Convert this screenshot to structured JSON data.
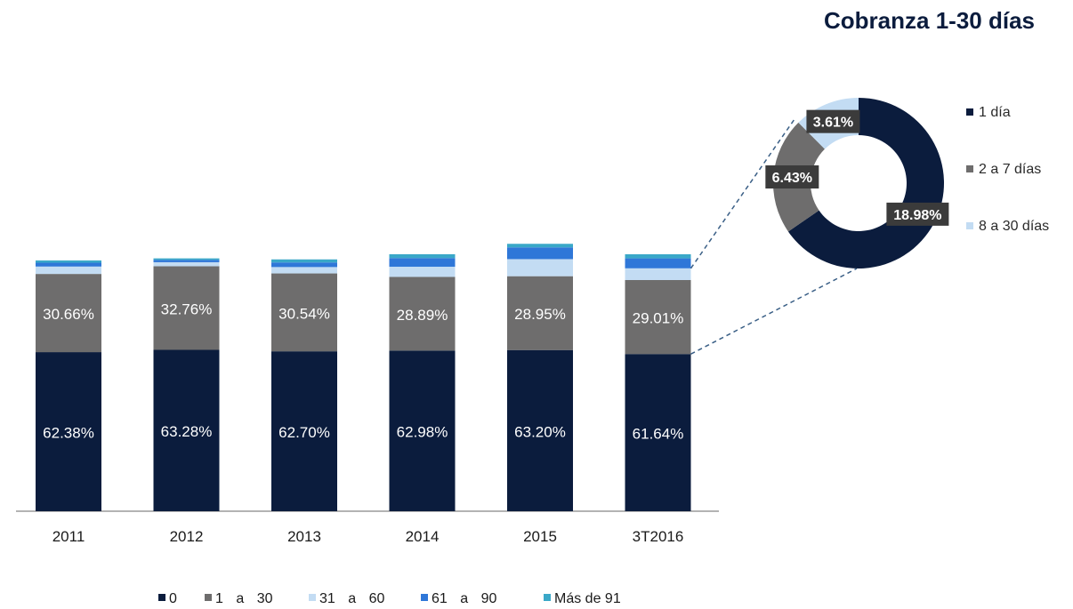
{
  "chart_data": [
    {
      "type": "bar",
      "stacked": true,
      "categories": [
        "2011",
        "2012",
        "2013",
        "2014",
        "2015",
        "3T2016"
      ],
      "series": [
        {
          "name": "0",
          "color": "#0b1c3d",
          "values": [
            62.38,
            63.28,
            62.7,
            62.98,
            63.2,
            61.64
          ],
          "labels": [
            "62.38%",
            "63.28%",
            "62.70%",
            "62.98%",
            "63.20%",
            "61.64%"
          ]
        },
        {
          "name": "1 a 30",
          "color": "#6e6d6d",
          "values": [
            30.66,
            32.76,
            30.54,
            28.89,
            28.95,
            29.01
          ],
          "labels": [
            "30.66%",
            "32.76%",
            "30.54%",
            "28.89%",
            "28.95%",
            "29.01%"
          ]
        },
        {
          "name": "31 a 60",
          "color": "#c3dcf3",
          "values": [
            2.9,
            1.6,
            2.5,
            4.0,
            6.7,
            4.6
          ],
          "labels": [
            "",
            "",
            "",
            "",
            "",
            ""
          ]
        },
        {
          "name": "61 a 90",
          "color": "#2f77d8",
          "values": [
            1.5,
            0.9,
            1.8,
            3.4,
            4.6,
            3.9
          ],
          "labels": [
            "",
            "",
            "",
            "",
            "",
            ""
          ]
        },
        {
          "name": "Más de 91",
          "color": "#3aa8c8",
          "values": [
            0.9,
            0.6,
            1.2,
            1.5,
            1.4,
            1.6
          ],
          "labels": [
            "",
            "",
            "",
            "",
            "",
            ""
          ]
        }
      ],
      "ylim": [
        0,
        190
      ],
      "legend_position": "bottom",
      "legend": [
        "0",
        "1 a 30",
        "31 a 60",
        "61 a 90",
        "Más de 91"
      ]
    },
    {
      "type": "pie",
      "title": "Cobranza 1-30 días",
      "donut": true,
      "slices": [
        {
          "name": "1 día",
          "value": 18.98,
          "label": "18.98%",
          "color": "#0b1c3d"
        },
        {
          "name": "2 a 7 días",
          "value": 6.43,
          "label": "6.43%",
          "color": "#6e6d6d"
        },
        {
          "name": "8 a 30 días",
          "value": 3.61,
          "label": "3.61%",
          "color": "#c3dcf3"
        }
      ],
      "legend_position": "right"
    }
  ]
}
